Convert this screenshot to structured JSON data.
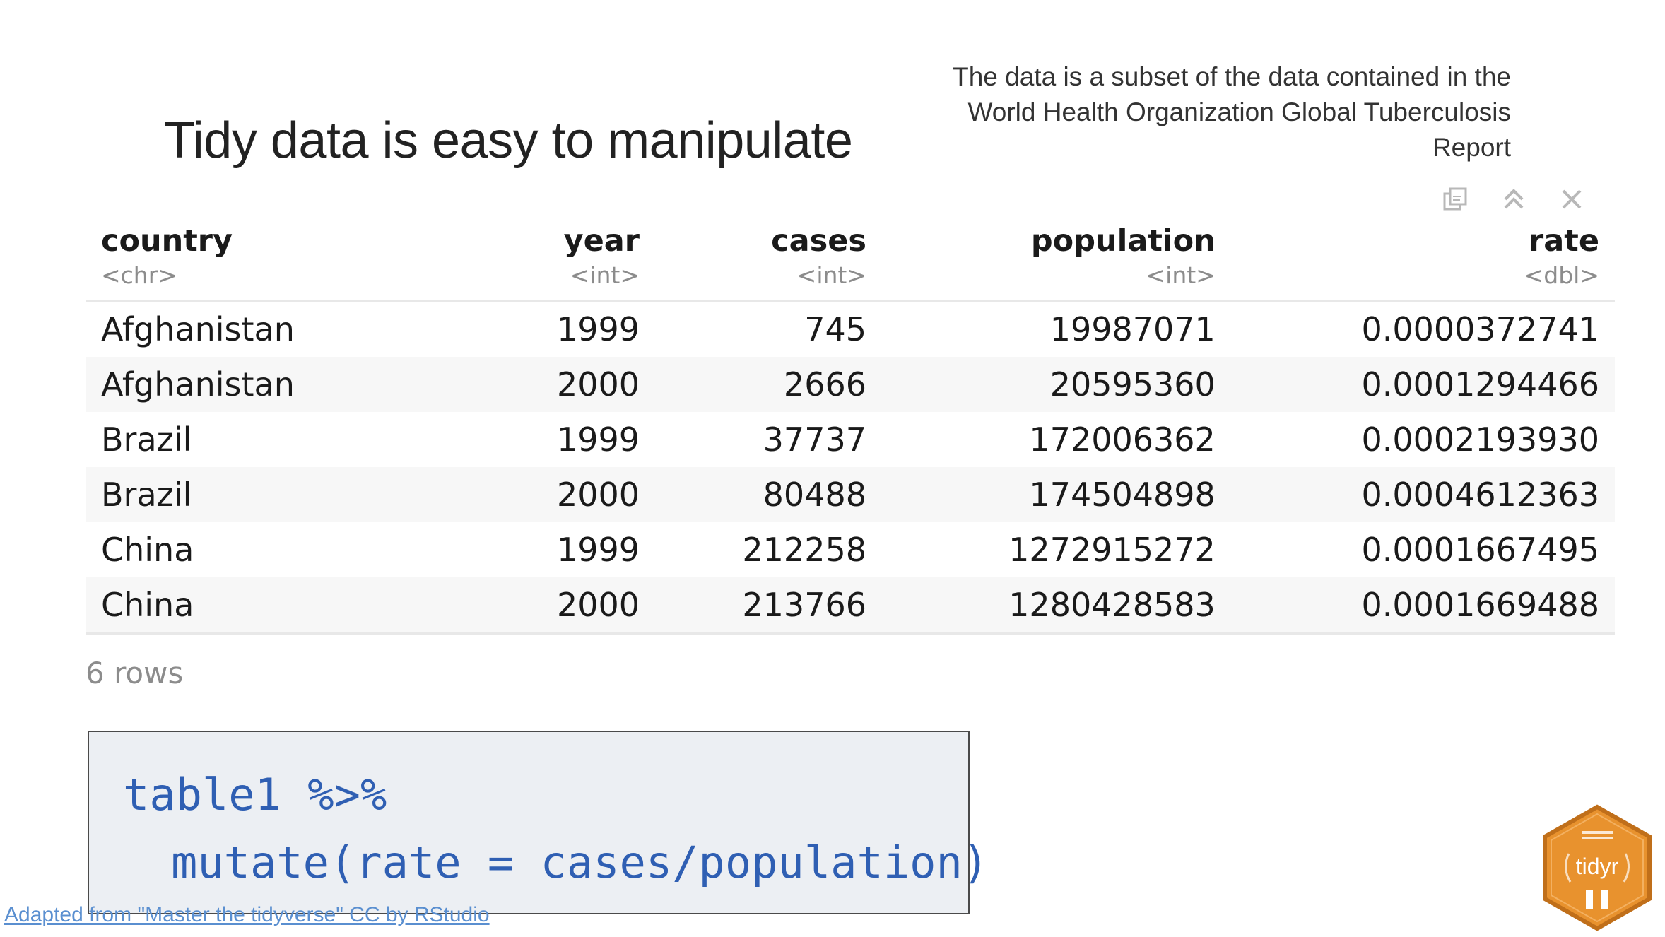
{
  "slide": {
    "title": "Tidy data is easy to manipulate",
    "source_note": "The data is a subset of the data contained in the World Health Organization Global Tuberculosis Report"
  },
  "viewer": {
    "icons": [
      "export-icon",
      "collapse-icon",
      "close-icon"
    ]
  },
  "table": {
    "columns": [
      {
        "name": "country",
        "type": "<chr>"
      },
      {
        "name": "year",
        "type": "<int>"
      },
      {
        "name": "cases",
        "type": "<int>"
      },
      {
        "name": "population",
        "type": "<int>"
      },
      {
        "name": "rate",
        "type": "<dbl>"
      }
    ],
    "rows": [
      [
        "Afghanistan",
        "1999",
        "745",
        "19987071",
        "0.0000372741"
      ],
      [
        "Afghanistan",
        "2000",
        "2666",
        "20595360",
        "0.0001294466"
      ],
      [
        "Brazil",
        "1999",
        "37737",
        "172006362",
        "0.0002193930"
      ],
      [
        "Brazil",
        "2000",
        "80488",
        "174504898",
        "0.0004612363"
      ],
      [
        "China",
        "1999",
        "212258",
        "1272915272",
        "0.0001667495"
      ],
      [
        "China",
        "2000",
        "213766",
        "1280428583",
        "0.0001669488"
      ]
    ],
    "row_count": "6 rows"
  },
  "code": {
    "line1": "table1 %>%",
    "line2": "mutate(rate = cases/population)"
  },
  "credit": {
    "text": "Adapted from \"Master the tidyverse\" CC by RStudio"
  },
  "logo": {
    "label": "tidyr"
  },
  "colors": {
    "code_text": "#2f5fb3",
    "code_bg": "#eceff3",
    "link": "#5a8fd0",
    "hex_fill": "#e8922e"
  }
}
